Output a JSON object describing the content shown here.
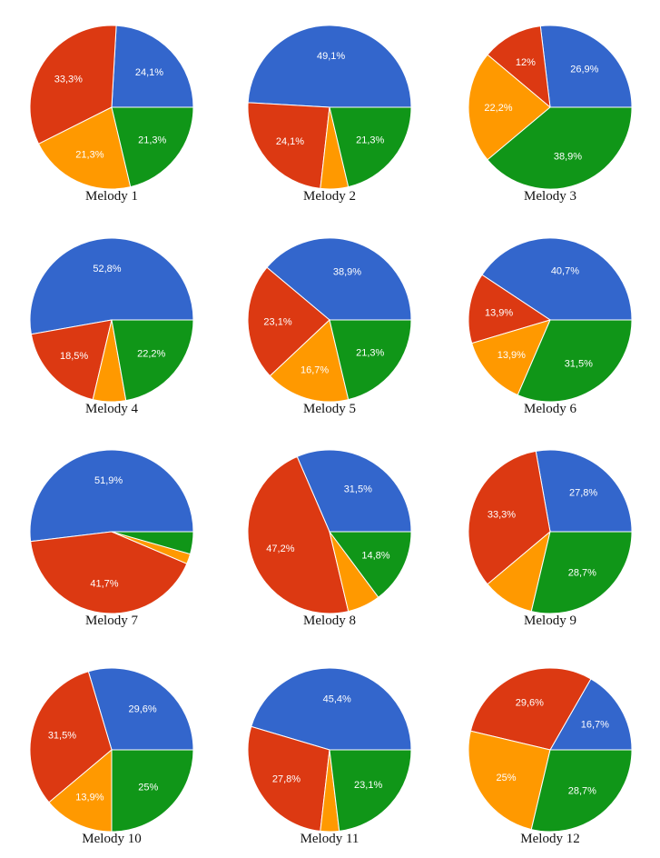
{
  "colors": {
    "blue": "#3366cc",
    "red": "#dc3912",
    "orange": "#ff9900",
    "green": "#109618"
  },
  "chart_data": [
    {
      "type": "pie",
      "title": "Melody 1",
      "slices": [
        {
          "color": "blue",
          "value": 24.1,
          "label": "24,1%"
        },
        {
          "color": "red",
          "value": 33.3,
          "label": "33,3%"
        },
        {
          "color": "orange",
          "value": 21.3,
          "label": "21,3%"
        },
        {
          "color": "green",
          "value": 21.3,
          "label": "21,3%"
        }
      ]
    },
    {
      "type": "pie",
      "title": "Melody 2",
      "slices": [
        {
          "color": "blue",
          "value": 49.1,
          "label": "49,1%"
        },
        {
          "color": "red",
          "value": 24.1,
          "label": "24,1%"
        },
        {
          "color": "orange",
          "value": 5.5,
          "label": ""
        },
        {
          "color": "green",
          "value": 21.3,
          "label": "21,3%"
        }
      ]
    },
    {
      "type": "pie",
      "title": "Melody 3",
      "slices": [
        {
          "color": "blue",
          "value": 26.9,
          "label": "26,9%"
        },
        {
          "color": "red",
          "value": 12,
          "label": "12%"
        },
        {
          "color": "orange",
          "value": 22.2,
          "label": "22,2%"
        },
        {
          "color": "green",
          "value": 38.9,
          "label": "38,9%"
        }
      ]
    },
    {
      "type": "pie",
      "title": "Melody 4",
      "slices": [
        {
          "color": "blue",
          "value": 52.8,
          "label": "52,8%"
        },
        {
          "color": "red",
          "value": 18.5,
          "label": "18,5%"
        },
        {
          "color": "orange",
          "value": 6.5,
          "label": ""
        },
        {
          "color": "green",
          "value": 22.2,
          "label": "22,2%"
        }
      ]
    },
    {
      "type": "pie",
      "title": "Melody 5",
      "slices": [
        {
          "color": "blue",
          "value": 38.9,
          "label": "38,9%"
        },
        {
          "color": "red",
          "value": 23.1,
          "label": "23,1%"
        },
        {
          "color": "orange",
          "value": 16.7,
          "label": "16,7%"
        },
        {
          "color": "green",
          "value": 21.3,
          "label": "21,3%"
        }
      ]
    },
    {
      "type": "pie",
      "title": "Melody 6",
      "slices": [
        {
          "color": "blue",
          "value": 40.7,
          "label": "40,7%"
        },
        {
          "color": "red",
          "value": 13.9,
          "label": "13,9%"
        },
        {
          "color": "orange",
          "value": 13.9,
          "label": "13,9%"
        },
        {
          "color": "green",
          "value": 31.5,
          "label": "31,5%"
        }
      ]
    },
    {
      "type": "pie",
      "title": "Melody 7",
      "slices": [
        {
          "color": "blue",
          "value": 51.9,
          "label": "51,9%"
        },
        {
          "color": "red",
          "value": 41.7,
          "label": "41,7%"
        },
        {
          "color": "orange",
          "value": 2.0,
          "label": ""
        },
        {
          "color": "green",
          "value": 4.4,
          "label": ""
        }
      ]
    },
    {
      "type": "pie",
      "title": "Melody 8",
      "slices": [
        {
          "color": "blue",
          "value": 31.5,
          "label": "31,5%"
        },
        {
          "color": "red",
          "value": 47.2,
          "label": "47,2%"
        },
        {
          "color": "orange",
          "value": 6.5,
          "label": ""
        },
        {
          "color": "green",
          "value": 14.8,
          "label": "14,8%"
        }
      ]
    },
    {
      "type": "pie",
      "title": "Melody 9",
      "slices": [
        {
          "color": "blue",
          "value": 27.8,
          "label": "27,8%"
        },
        {
          "color": "red",
          "value": 33.3,
          "label": "33,3%"
        },
        {
          "color": "orange",
          "value": 10.2,
          "label": ""
        },
        {
          "color": "green",
          "value": 28.7,
          "label": "28,7%"
        }
      ]
    },
    {
      "type": "pie",
      "title": "Melody 10",
      "slices": [
        {
          "color": "blue",
          "value": 29.6,
          "label": "29,6%"
        },
        {
          "color": "red",
          "value": 31.5,
          "label": "31,5%"
        },
        {
          "color": "orange",
          "value": 13.9,
          "label": "13,9%"
        },
        {
          "color": "green",
          "value": 25,
          "label": "25%"
        }
      ]
    },
    {
      "type": "pie",
      "title": "Melody 11",
      "slices": [
        {
          "color": "blue",
          "value": 45.4,
          "label": "45,4%"
        },
        {
          "color": "red",
          "value": 27.8,
          "label": "27,8%"
        },
        {
          "color": "orange",
          "value": 3.7,
          "label": ""
        },
        {
          "color": "green",
          "value": 23.1,
          "label": "23,1%"
        }
      ]
    },
    {
      "type": "pie",
      "title": "Melody 12",
      "slices": [
        {
          "color": "blue",
          "value": 16.7,
          "label": "16,7%"
        },
        {
          "color": "red",
          "value": 29.6,
          "label": "29,6%"
        },
        {
          "color": "orange",
          "value": 25,
          "label": "25%"
        },
        {
          "color": "green",
          "value": 28.7,
          "label": "28,7%"
        }
      ]
    }
  ]
}
